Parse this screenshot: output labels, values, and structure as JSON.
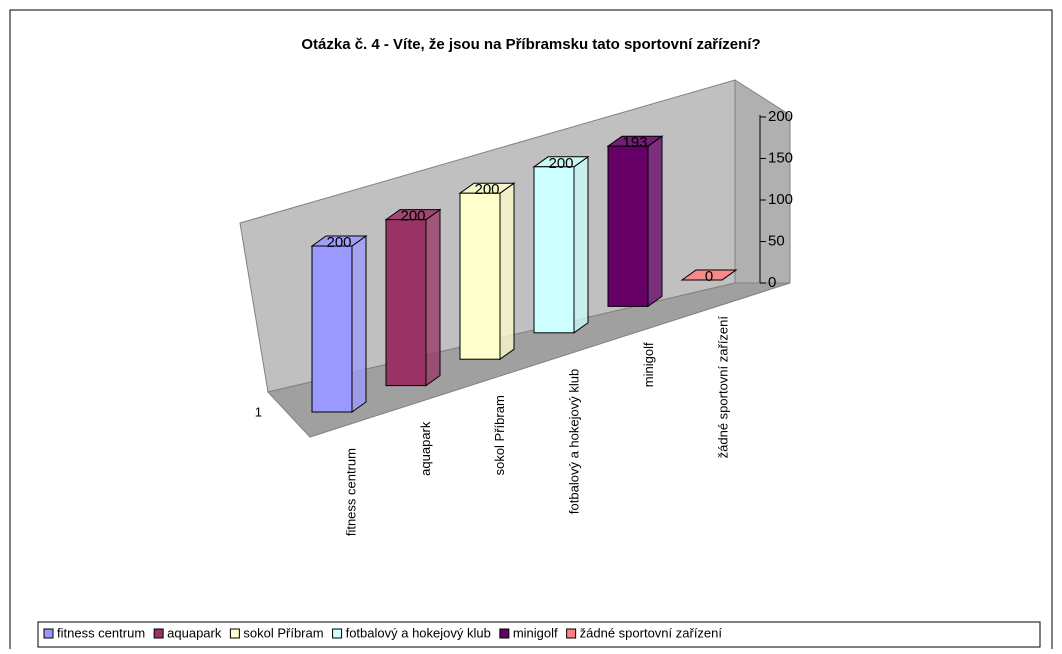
{
  "chart_data": {
    "type": "bar",
    "title": "Otázka č. 4  - Víte, že jsou na Příbramsku tato sportovní zařízení?",
    "categories": [
      "1"
    ],
    "series": [
      {
        "name": "fitness centrum",
        "color": "#9999ff",
        "values": [
          200
        ]
      },
      {
        "name": "aquapark",
        "color": "#993366",
        "values": [
          200
        ]
      },
      {
        "name": "sokol Příbram",
        "color": "#ffffcc",
        "values": [
          200
        ]
      },
      {
        "name": "fotbalový a hokejový klub",
        "color": "#ccffff",
        "values": [
          200
        ]
      },
      {
        "name": "minigolf",
        "color": "#660066",
        "values": [
          193
        ]
      },
      {
        "name": "žádné sportovní zařízení",
        "color": "#ff8080",
        "values": [
          0
        ]
      }
    ],
    "ylim": [
      0,
      200
    ],
    "yticks": [
      0,
      50,
      100,
      150,
      200
    ],
    "legend": "bottom"
  }
}
